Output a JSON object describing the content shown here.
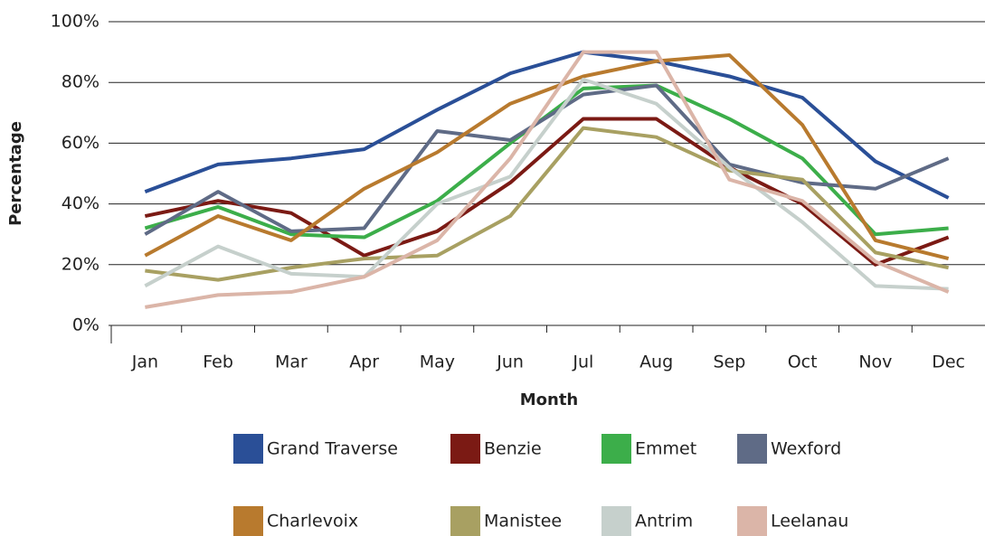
{
  "chart_data": {
    "type": "line",
    "x_label": "Month",
    "y_label": "Percentage",
    "categories": [
      "Jan",
      "Feb",
      "Mar",
      "Apr",
      "May",
      "Jun",
      "Jul",
      "Aug",
      "Sep",
      "Oct",
      "Nov",
      "Dec"
    ],
    "series": [
      {
        "name": "Grand Traverse",
        "color": "#2a4f97",
        "values": [
          44,
          53,
          55,
          58,
          71,
          83,
          90,
          87,
          82,
          75,
          54,
          42
        ]
      },
      {
        "name": "Benzie",
        "color": "#7b1a14",
        "values": [
          36,
          41,
          37,
          23,
          31,
          47,
          68,
          68,
          52,
          40,
          20,
          29
        ]
      },
      {
        "name": "Emmet",
        "color": "#3cae4a",
        "values": [
          32,
          39,
          30,
          29,
          41,
          60,
          78,
          79,
          68,
          55,
          30,
          32
        ]
      },
      {
        "name": "Wexford",
        "color": "#5f6b86",
        "values": [
          30,
          44,
          31,
          32,
          64,
          61,
          76,
          79,
          53,
          47,
          45,
          55
        ]
      },
      {
        "name": "Charlevoix",
        "color": "#b87a2e",
        "values": [
          23,
          36,
          28,
          45,
          57,
          73,
          82,
          87,
          89,
          66,
          28,
          22
        ]
      },
      {
        "name": "Manistee",
        "color": "#a8a062",
        "values": [
          18,
          15,
          19,
          22,
          23,
          36,
          65,
          62,
          51,
          48,
          24,
          19
        ]
      },
      {
        "name": "Antrim",
        "color": "#c6d0cc",
        "values": [
          13,
          26,
          17,
          16,
          40,
          49,
          81,
          73,
          52,
          34,
          13,
          12
        ]
      },
      {
        "name": "Leelanau",
        "color": "#dbb5a8",
        "values": [
          6,
          10,
          11,
          16,
          28,
          55,
          90,
          90,
          48,
          41,
          21,
          11
        ]
      }
    ],
    "ylim": [
      0,
      100
    ],
    "yticks": [
      {
        "value": 0,
        "label": "0%"
      },
      {
        "value": 20,
        "label": "20%"
      },
      {
        "value": 40,
        "label": "40%"
      },
      {
        "value": 60,
        "label": "60%"
      },
      {
        "value": 80,
        "label": "80%"
      },
      {
        "value": 100,
        "label": "100%"
      }
    ],
    "grid": true,
    "legend": "bottom"
  }
}
